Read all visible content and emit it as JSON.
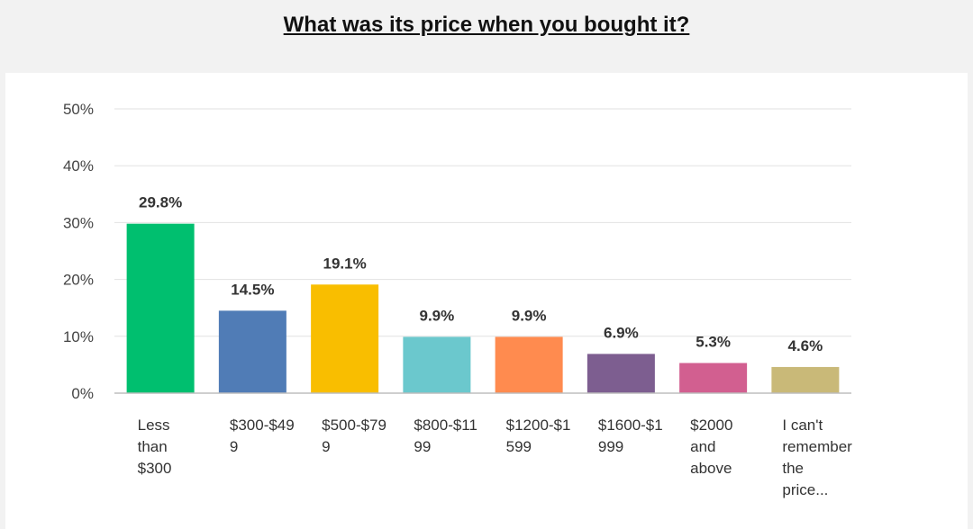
{
  "title": "What was its price when you bought it?",
  "chart_data": {
    "type": "bar",
    "title": "What was its price when you bought it?",
    "categories": [
      [
        "Less",
        "than",
        "$300"
      ],
      [
        "$300-$49",
        "9"
      ],
      [
        "$500-$79",
        "9"
      ],
      [
        "$800-$11",
        "99"
      ],
      [
        "$1200-$1",
        "599"
      ],
      [
        "$1600-$1",
        "999"
      ],
      [
        "$2000",
        "and",
        "above"
      ],
      [
        "I can't",
        "remember",
        "the",
        "price..."
      ]
    ],
    "values": [
      29.8,
      14.5,
      19.1,
      9.9,
      9.9,
      6.9,
      5.3,
      4.6
    ],
    "data_labels": [
      "29.8%",
      "14.5%",
      "19.1%",
      "9.9%",
      "9.9%",
      "6.9%",
      "5.3%",
      "4.6%"
    ],
    "colors": [
      "#00bf6f",
      "#507cb6",
      "#f9be00",
      "#6bc8cd",
      "#ff8b4f",
      "#7d5e90",
      "#d25f90",
      "#c9b978"
    ],
    "y_ticks": [
      "0%",
      "10%",
      "20%",
      "30%",
      "40%",
      "50%"
    ],
    "ylim": [
      0,
      50
    ],
    "grid": true,
    "xlabel": "",
    "ylabel": ""
  }
}
